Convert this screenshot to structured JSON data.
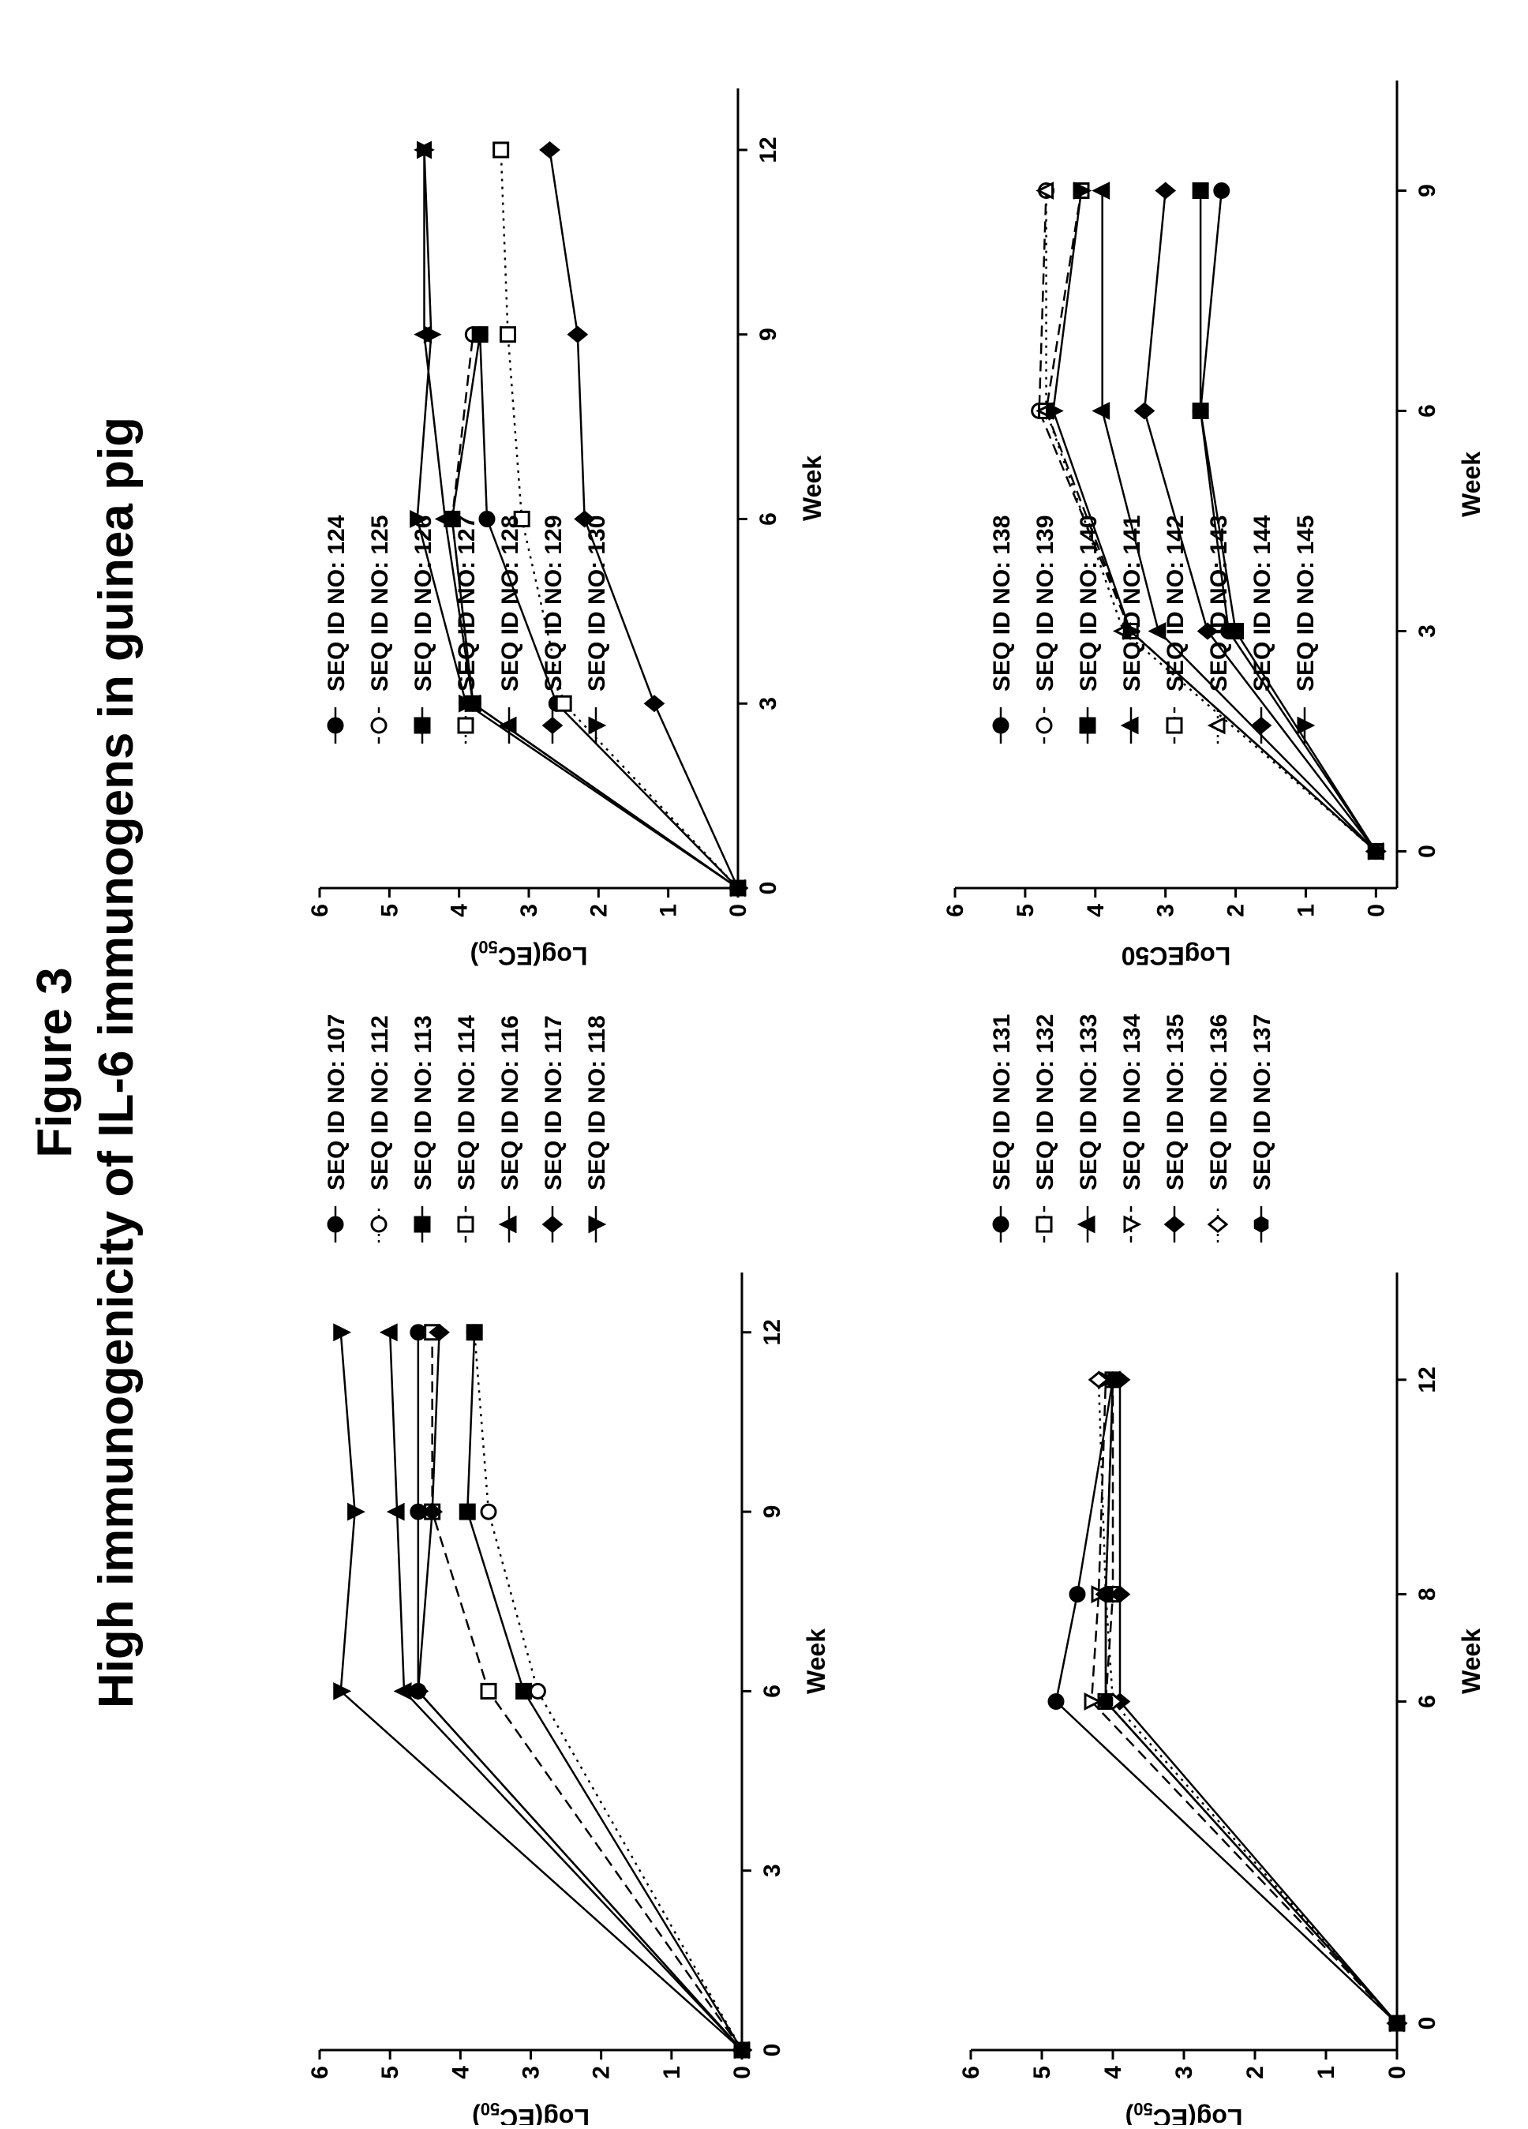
{
  "figure": {
    "label": "Figure 3",
    "title": "High immunogenicity of IL-6 immunogens in guinea pig"
  },
  "chart_data": [
    {
      "type": "line",
      "xlabel": "Week",
      "ylabel": "Log(EC50)",
      "ylabel_parts": [
        "Log(EC",
        "50",
        ")"
      ],
      "xlim": [
        0,
        13
      ],
      "ylim": [
        0,
        6
      ],
      "xticks": [
        "0",
        "3",
        "6",
        "9",
        "12"
      ],
      "yticks": [
        "0",
        "1",
        "2",
        "3",
        "4",
        "5",
        "6"
      ],
      "x": [
        0,
        6,
        9,
        12
      ],
      "series": [
        {
          "name": "SEQ ID NO: 107",
          "marker": "circle-filled",
          "dash": "solid",
          "values": [
            0,
            4.6,
            4.6,
            4.6
          ]
        },
        {
          "name": "SEQ ID NO: 112",
          "marker": "circle-open",
          "dash": "dotted",
          "values": [
            0,
            2.9,
            3.6,
            3.8
          ]
        },
        {
          "name": "SEQ ID NO: 113",
          "marker": "square-filled",
          "dash": "solid",
          "values": [
            0,
            3.1,
            3.9,
            3.8
          ]
        },
        {
          "name": "SEQ ID NO: 114",
          "marker": "square-open",
          "dash": "dashed",
          "values": [
            0,
            3.6,
            4.4,
            4.4
          ]
        },
        {
          "name": "SEQ ID NO: 116",
          "marker": "triangle-up",
          "dash": "solid",
          "values": [
            0,
            4.8,
            4.9,
            5.0
          ]
        },
        {
          "name": "SEQ ID NO: 117",
          "marker": "diamond-filled",
          "dash": "solid",
          "values": [
            0,
            4.6,
            4.4,
            4.3
          ]
        },
        {
          "name": "SEQ ID NO: 118",
          "marker": "triangle-down",
          "dash": "solid",
          "values": [
            0,
            5.7,
            5.5,
            5.7
          ]
        }
      ]
    },
    {
      "type": "line",
      "xlabel": "Week",
      "ylabel": "Log(EC50)",
      "ylabel_parts": [
        "Log(EC",
        "50",
        ")"
      ],
      "xlim": [
        0,
        13
      ],
      "ylim": [
        0,
        6
      ],
      "xticks": [
        "0",
        "3",
        "6",
        "9",
        "12"
      ],
      "yticks": [
        "0",
        "1",
        "2",
        "3",
        "4",
        "5",
        "6"
      ],
      "x": [
        0,
        3,
        6,
        9,
        12
      ],
      "series": [
        {
          "name": "SEQ ID NO: 124",
          "marker": "circle-filled",
          "dash": "solid",
          "values": [
            0,
            2.6,
            3.6,
            3.7,
            null
          ]
        },
        {
          "name": "SEQ ID NO: 125",
          "marker": "circle-open",
          "dash": "dashed",
          "values": [
            0,
            3.8,
            4.1,
            3.8,
            null
          ]
        },
        {
          "name": "SEQ ID NO: 126",
          "marker": "square-filled",
          "dash": "solid",
          "values": [
            0,
            3.8,
            4.1,
            3.7,
            null
          ]
        },
        {
          "name": "SEQ ID NO: 127",
          "marker": "square-open",
          "dash": "dotted",
          "values": [
            0,
            2.5,
            3.1,
            3.3,
            3.4
          ]
        },
        {
          "name": "SEQ ID NO: 128",
          "marker": "triangle-up",
          "dash": "solid",
          "values": [
            0,
            3.8,
            4.2,
            4.5,
            4.5
          ]
        },
        {
          "name": "SEQ ID NO: 129",
          "marker": "diamond-filled",
          "dash": "solid",
          "values": [
            0,
            1.2,
            2.2,
            2.3,
            2.7
          ]
        },
        {
          "name": "SEQ ID NO: 130",
          "marker": "triangle-down",
          "dash": "solid",
          "values": [
            0,
            3.9,
            4.6,
            4.4,
            4.5
          ]
        }
      ]
    },
    {
      "type": "line",
      "xlabel": "Week",
      "ylabel": "Log(EC50)",
      "ylabel_parts": [
        "Log(EC",
        "50",
        ")"
      ],
      "xlim": [
        -0.5,
        14
      ],
      "ylim": [
        0,
        6
      ],
      "xticks": [
        "0",
        "6",
        "8",
        "12"
      ],
      "yticks": [
        "0",
        "1",
        "2",
        "3",
        "4",
        "5",
        "6"
      ],
      "x": [
        0,
        6,
        8,
        12
      ],
      "series": [
        {
          "name": "SEQ ID NO: 131",
          "marker": "circle-filled",
          "dash": "solid",
          "values": [
            0,
            4.8,
            4.5,
            4.0
          ]
        },
        {
          "name": "SEQ ID NO: 132",
          "marker": "square-open",
          "dash": "dashed",
          "values": [
            0,
            4.1,
            4.0,
            4.0
          ]
        },
        {
          "name": "SEQ ID NO: 133",
          "marker": "triangle-up",
          "dash": "solid",
          "values": [
            0,
            4.1,
            4.1,
            4.0
          ]
        },
        {
          "name": "SEQ ID NO: 134",
          "marker": "triangle-down-open",
          "dash": "dashed",
          "values": [
            0,
            4.3,
            4.2,
            4.1
          ]
        },
        {
          "name": "SEQ ID NO: 135",
          "marker": "diamond-filled",
          "dash": "solid",
          "values": [
            0,
            3.9,
            3.9,
            3.9
          ]
        },
        {
          "name": "SEQ ID NO: 136",
          "marker": "diamond-open",
          "dash": "dotted",
          "values": [
            0,
            4.0,
            4.1,
            4.2
          ]
        },
        {
          "name": "SEQ ID NO: 137",
          "marker": "hexagon-filled",
          "dash": "solid",
          "values": [
            0,
            4.1,
            4.1,
            4.0
          ]
        }
      ]
    },
    {
      "type": "line",
      "xlabel": "Week",
      "ylabel": "LogEC50",
      "xlim": [
        -0.5,
        10.5
      ],
      "ylim": [
        -0.3,
        6
      ],
      "xticks": [
        "0",
        "3",
        "6",
        "9"
      ],
      "yticks": [
        "0",
        "1",
        "2",
        "3",
        "4",
        "5",
        "6"
      ],
      "x": [
        0,
        3,
        6,
        9
      ],
      "series": [
        {
          "name": "SEQ ID NO: 138",
          "marker": "circle-filled",
          "dash": "solid",
          "values": [
            0,
            2.1,
            2.5,
            2.2
          ]
        },
        {
          "name": "SEQ ID NO: 139",
          "marker": "circle-open",
          "dash": "dashed",
          "values": [
            0,
            3.5,
            4.8,
            4.7
          ]
        },
        {
          "name": "SEQ ID NO: 140",
          "marker": "square-filled",
          "dash": "solid",
          "values": [
            0,
            2.0,
            2.5,
            2.5
          ]
        },
        {
          "name": "SEQ ID NO: 141",
          "marker": "triangle-up",
          "dash": "solid",
          "values": [
            0,
            3.1,
            3.9,
            3.9
          ]
        },
        {
          "name": "SEQ ID NO: 142",
          "marker": "square-open",
          "dash": "dashed",
          "values": [
            0,
            3.5,
            4.7,
            4.2
          ]
        },
        {
          "name": "SEQ ID NO: 143",
          "marker": "triangle-up-open",
          "dash": "dotted",
          "values": [
            0,
            3.6,
            4.7,
            4.7
          ]
        },
        {
          "name": "SEQ ID NO: 144",
          "marker": "diamond-filled",
          "dash": "solid",
          "values": [
            0,
            2.4,
            3.3,
            3.0
          ]
        },
        {
          "name": "SEQ ID NO: 145",
          "marker": "triangle-down",
          "dash": "solid",
          "values": [
            0,
            3.5,
            4.6,
            4.2
          ]
        }
      ]
    }
  ]
}
